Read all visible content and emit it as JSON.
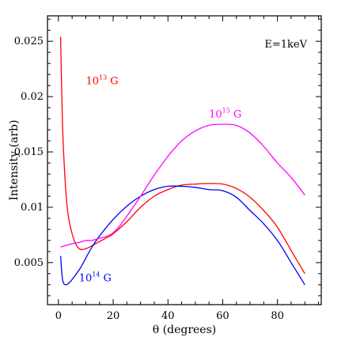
{
  "chart_data": {
    "type": "line",
    "xlabel": "θ (degrees)",
    "ylabel": "Intensity (arb)",
    "xlim": [
      -4,
      96
    ],
    "ylim": [
      0.0012,
      0.0273
    ],
    "xticks": [
      0,
      20,
      40,
      60,
      80
    ],
    "yticks": [
      0.005,
      0.01,
      0.015,
      0.02,
      0.025
    ],
    "ytick_labels": [
      "0.005",
      "0.01",
      "0.015",
      "0.02",
      "0.025"
    ],
    "grid": false,
    "annotation": "E=1keV",
    "series": [
      {
        "label_base": "10",
        "label_exp": "13",
        "label_unit": "G",
        "color": "#ff0000",
        "points": [
          [
            0.8,
            0.0254
          ],
          [
            1.5,
            0.0175
          ],
          [
            2.5,
            0.0122
          ],
          [
            3.5,
            0.0094
          ],
          [
            5,
            0.0076
          ],
          [
            6.5,
            0.0066
          ],
          [
            8,
            0.0062
          ],
          [
            10,
            0.00625
          ],
          [
            12,
            0.0065
          ],
          [
            15,
            0.0069
          ],
          [
            18,
            0.0073
          ],
          [
            20,
            0.0076
          ],
          [
            25,
            0.0087
          ],
          [
            30,
            0.01
          ],
          [
            35,
            0.011
          ],
          [
            40,
            0.0116
          ],
          [
            45,
            0.012
          ],
          [
            50,
            0.0121
          ],
          [
            55,
            0.01215
          ],
          [
            60,
            0.0121
          ],
          [
            65,
            0.0117
          ],
          [
            70,
            0.0109
          ],
          [
            75,
            0.0097
          ],
          [
            80,
            0.0082
          ],
          [
            85,
            0.0061
          ],
          [
            90,
            0.004
          ]
        ],
        "label_position": [
          10,
          0.0211
        ]
      },
      {
        "label_base": "10",
        "label_exp": "14",
        "label_unit": "G",
        "color": "#0000ff",
        "points": [
          [
            0.8,
            0.0056
          ],
          [
            1.5,
            0.0035
          ],
          [
            2.5,
            0.003
          ],
          [
            4,
            0.0032
          ],
          [
            6,
            0.0038
          ],
          [
            8,
            0.0045
          ],
          [
            10,
            0.0054
          ],
          [
            12,
            0.0063
          ],
          [
            15,
            0.0074
          ],
          [
            20,
            0.0089
          ],
          [
            25,
            0.0101
          ],
          [
            30,
            0.011
          ],
          [
            35,
            0.0116
          ],
          [
            40,
            0.0119
          ],
          [
            45,
            0.0119
          ],
          [
            50,
            0.0118
          ],
          [
            55,
            0.0116
          ],
          [
            60,
            0.0115
          ],
          [
            65,
            0.0109
          ],
          [
            70,
            0.0097
          ],
          [
            75,
            0.0085
          ],
          [
            80,
            0.007
          ],
          [
            85,
            0.005
          ],
          [
            90,
            0.003
          ]
        ],
        "label_position": [
          7.5,
          0.0033
        ]
      },
      {
        "label_base": "10",
        "label_exp": "15",
        "label_unit": "G",
        "color": "#ff00ff",
        "points": [
          [
            0.8,
            0.0064
          ],
          [
            2,
            0.0065
          ],
          [
            5,
            0.0067
          ],
          [
            8,
            0.00685
          ],
          [
            10,
            0.007
          ],
          [
            12,
            0.007
          ],
          [
            15,
            0.0072
          ],
          [
            18,
            0.0074
          ],
          [
            20,
            0.0077
          ],
          [
            22,
            0.0082
          ],
          [
            25,
            0.0092
          ],
          [
            30,
            0.011
          ],
          [
            35,
            0.0129
          ],
          [
            40,
            0.0146
          ],
          [
            45,
            0.016
          ],
          [
            50,
            0.0169
          ],
          [
            55,
            0.0174
          ],
          [
            60,
            0.0175
          ],
          [
            65,
            0.0174
          ],
          [
            70,
            0.0167
          ],
          [
            75,
            0.0155
          ],
          [
            80,
            0.014
          ],
          [
            85,
            0.0127
          ],
          [
            90,
            0.0111
          ]
        ],
        "label_position": [
          55,
          0.0181
        ]
      }
    ]
  }
}
